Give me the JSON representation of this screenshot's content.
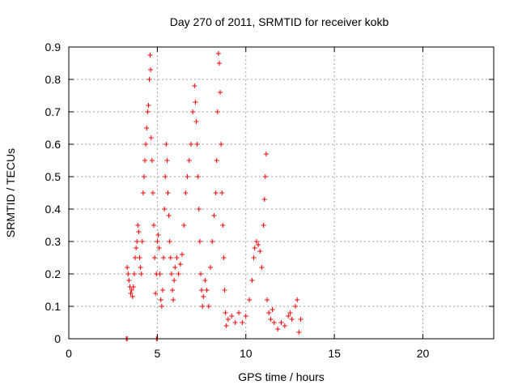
{
  "chart_data": {
    "type": "scatter",
    "title": "Day 270 of 2011, SRMTID for receiver kokb",
    "xlabel": "GPS time / hours",
    "ylabel": "SRMTID / TECUs",
    "xlim": [
      0,
      24
    ],
    "ylim": [
      0,
      0.9
    ],
    "xticks": [
      0,
      5,
      10,
      15,
      20
    ],
    "yticks": [
      0,
      0.1,
      0.2,
      0.3,
      0.4,
      0.5,
      0.6,
      0.7,
      0.8,
      0.9
    ],
    "grid": true,
    "marker": "+",
    "color": "#ff0000",
    "series": [
      {
        "name": "SRMTID",
        "points": [
          [
            3.25,
            0.0
          ],
          [
            3.3,
            0.0
          ],
          [
            4.95,
            0.0
          ],
          [
            5.0,
            0.0
          ],
          [
            3.3,
            0.22
          ],
          [
            3.35,
            0.2
          ],
          [
            3.4,
            0.18
          ],
          [
            3.45,
            0.16
          ],
          [
            3.5,
            0.14
          ],
          [
            3.55,
            0.15
          ],
          [
            3.6,
            0.13
          ],
          [
            3.65,
            0.16
          ],
          [
            3.7,
            0.2
          ],
          [
            3.75,
            0.25
          ],
          [
            3.8,
            0.28
          ],
          [
            3.85,
            0.3
          ],
          [
            3.9,
            0.35
          ],
          [
            3.95,
            0.33
          ],
          [
            4.0,
            0.25
          ],
          [
            4.05,
            0.22
          ],
          [
            4.1,
            0.2
          ],
          [
            4.15,
            0.3
          ],
          [
            4.2,
            0.45
          ],
          [
            4.25,
            0.5
          ],
          [
            4.3,
            0.55
          ],
          [
            4.35,
            0.6
          ],
          [
            4.4,
            0.65
          ],
          [
            4.45,
            0.7
          ],
          [
            4.5,
            0.72
          ],
          [
            4.55,
            0.8
          ],
          [
            4.6,
            0.875
          ],
          [
            4.62,
            0.83
          ],
          [
            4.65,
            0.62
          ],
          [
            4.7,
            0.55
          ],
          [
            4.75,
            0.45
          ],
          [
            4.8,
            0.35
          ],
          [
            4.85,
            0.25
          ],
          [
            4.9,
            0.14
          ],
          [
            4.95,
            0.2
          ],
          [
            5.0,
            0.3
          ],
          [
            5.05,
            0.32
          ],
          [
            5.1,
            0.28
          ],
          [
            5.15,
            0.2
          ],
          [
            5.2,
            0.12
          ],
          [
            5.25,
            0.1
          ],
          [
            5.3,
            0.15
          ],
          [
            5.35,
            0.25
          ],
          [
            5.4,
            0.4
          ],
          [
            5.45,
            0.5
          ],
          [
            5.5,
            0.6
          ],
          [
            5.55,
            0.55
          ],
          [
            5.6,
            0.45
          ],
          [
            5.65,
            0.38
          ],
          [
            5.7,
            0.3
          ],
          [
            5.75,
            0.25
          ],
          [
            5.8,
            0.2
          ],
          [
            5.85,
            0.15
          ],
          [
            5.9,
            0.12
          ],
          [
            5.95,
            0.18
          ],
          [
            6.0,
            0.22
          ],
          [
            6.1,
            0.25
          ],
          [
            6.2,
            0.2
          ],
          [
            6.3,
            0.23
          ],
          [
            6.4,
            0.26
          ],
          [
            6.5,
            0.35
          ],
          [
            6.6,
            0.45
          ],
          [
            6.7,
            0.5
          ],
          [
            6.8,
            0.55
          ],
          [
            6.9,
            0.6
          ],
          [
            7.0,
            0.7
          ],
          [
            7.1,
            0.78
          ],
          [
            7.15,
            0.73
          ],
          [
            7.2,
            0.67
          ],
          [
            7.25,
            0.6
          ],
          [
            7.3,
            0.5
          ],
          [
            7.35,
            0.4
          ],
          [
            7.4,
            0.3
          ],
          [
            7.45,
            0.2
          ],
          [
            7.5,
            0.15
          ],
          [
            7.55,
            0.1
          ],
          [
            7.6,
            0.13
          ],
          [
            7.7,
            0.18
          ],
          [
            7.8,
            0.15
          ],
          [
            7.9,
            0.1
          ],
          [
            8.0,
            0.22
          ],
          [
            8.1,
            0.3
          ],
          [
            8.2,
            0.38
          ],
          [
            8.3,
            0.45
          ],
          [
            8.35,
            0.55
          ],
          [
            8.4,
            0.7
          ],
          [
            8.45,
            0.88
          ],
          [
            8.5,
            0.85
          ],
          [
            8.55,
            0.76
          ],
          [
            8.6,
            0.6
          ],
          [
            8.65,
            0.45
          ],
          [
            8.7,
            0.35
          ],
          [
            8.75,
            0.25
          ],
          [
            8.8,
            0.15
          ],
          [
            8.85,
            0.08
          ],
          [
            8.9,
            0.04
          ],
          [
            9.0,
            0.06
          ],
          [
            9.2,
            0.07
          ],
          [
            9.4,
            0.05
          ],
          [
            9.6,
            0.08
          ],
          [
            9.8,
            0.05
          ],
          [
            10.0,
            0.07
          ],
          [
            10.2,
            0.12
          ],
          [
            10.35,
            0.18
          ],
          [
            10.45,
            0.25
          ],
          [
            10.5,
            0.28
          ],
          [
            10.6,
            0.3
          ],
          [
            10.7,
            0.29
          ],
          [
            10.8,
            0.27
          ],
          [
            10.9,
            0.22
          ],
          [
            11.0,
            0.35
          ],
          [
            11.05,
            0.43
          ],
          [
            11.1,
            0.5
          ],
          [
            11.15,
            0.57
          ],
          [
            11.2,
            0.12
          ],
          [
            11.3,
            0.08
          ],
          [
            11.4,
            0.06
          ],
          [
            11.5,
            0.09
          ],
          [
            11.6,
            0.05
          ],
          [
            11.8,
            0.03
          ],
          [
            12.0,
            0.05
          ],
          [
            12.2,
            0.04
          ],
          [
            12.4,
            0.07
          ],
          [
            12.5,
            0.08
          ],
          [
            12.6,
            0.06
          ],
          [
            12.8,
            0.1
          ],
          [
            12.9,
            0.12
          ],
          [
            13.0,
            0.02
          ],
          [
            13.1,
            0.06
          ]
        ]
      }
    ]
  }
}
